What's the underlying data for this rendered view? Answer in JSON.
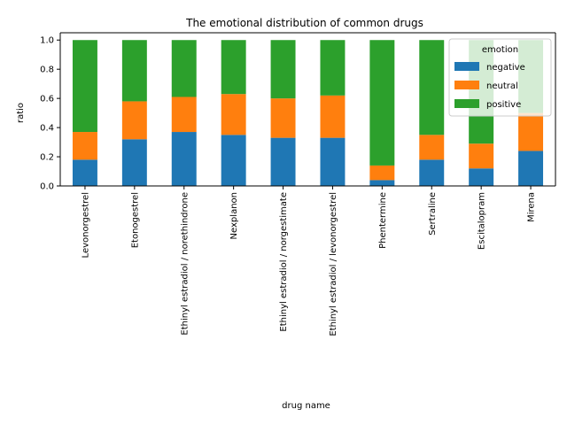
{
  "chart_data": {
    "type": "bar",
    "stacked": true,
    "title": "The emotional distribution of common drugs",
    "xlabel": "drug name",
    "ylabel": "ratio",
    "ylim": [
      0,
      1.05
    ],
    "yticks": [
      0.0,
      0.2,
      0.4,
      0.6,
      0.8,
      1.0
    ],
    "ytick_labels": [
      "0.0",
      "0.2",
      "0.4",
      "0.6",
      "0.8",
      "1.0"
    ],
    "grid": false,
    "categories": [
      "Levonorgestrel",
      "Etonogestrel",
      "Ethinyl estradiol / norethindrone",
      "Nexplanon",
      "Ethinyl estradiol / norgestimate",
      "Ethinyl estradiol / levonorgestrel",
      "Phentermine",
      "Sertraline",
      "Escitalopram",
      "Mirena"
    ],
    "series": [
      {
        "name": "negative",
        "color": "#1f77b4",
        "values": [
          0.18,
          0.32,
          0.37,
          0.35,
          0.33,
          0.33,
          0.04,
          0.18,
          0.12,
          0.24
        ]
      },
      {
        "name": "neutral",
        "color": "#ff7f0e",
        "values": [
          0.19,
          0.26,
          0.24,
          0.28,
          0.27,
          0.29,
          0.1,
          0.17,
          0.17,
          0.26
        ]
      },
      {
        "name": "positive",
        "color": "#2ca02c",
        "values": [
          0.63,
          0.42,
          0.39,
          0.37,
          0.4,
          0.38,
          0.86,
          0.65,
          0.71,
          0.5
        ]
      }
    ],
    "legend": {
      "title": "emotion",
      "position": "top-right"
    }
  }
}
